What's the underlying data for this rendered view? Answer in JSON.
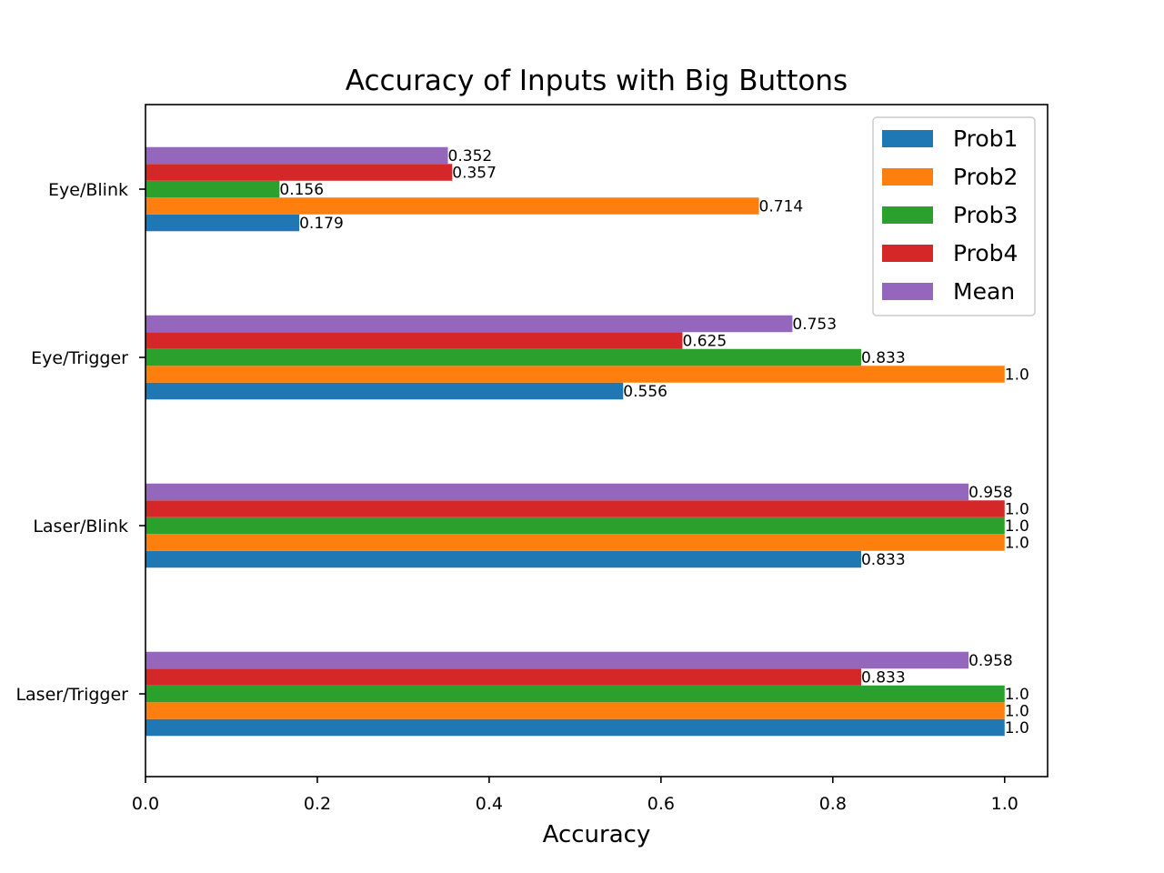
{
  "chart_data": {
    "type": "bar",
    "orientation": "horizontal",
    "title": "Accuracy of Inputs with Big Buttons",
    "xlabel": "Accuracy",
    "ylabel": "",
    "xlim": [
      0,
      1.05
    ],
    "xticks": [
      "0.0",
      "0.2",
      "0.4",
      "0.6",
      "0.8",
      "1.0"
    ],
    "categories": [
      "Eye/Blink",
      "Eye/Trigger",
      "Laser/Blink",
      "Laser/Trigger"
    ],
    "series": [
      {
        "name": "Prob1",
        "color": "#1f77b4",
        "values": [
          0.179,
          0.556,
          0.833,
          1.0
        ],
        "labels": [
          "0.179",
          "0.556",
          "0.833",
          "1.0"
        ]
      },
      {
        "name": "Prob2",
        "color": "#ff7f0e",
        "values": [
          0.714,
          1.0,
          1.0,
          1.0
        ],
        "labels": [
          "0.714",
          "1.0",
          "1.0",
          "1.0"
        ]
      },
      {
        "name": "Prob3",
        "color": "#2ca02c",
        "values": [
          0.156,
          0.833,
          1.0,
          1.0
        ],
        "labels": [
          "0.156",
          "0.833",
          "1.0",
          "1.0"
        ]
      },
      {
        "name": "Prob4",
        "color": "#d62728",
        "values": [
          0.357,
          0.625,
          1.0,
          0.833
        ],
        "labels": [
          "0.357",
          "0.625",
          "1.0",
          "0.833"
        ]
      },
      {
        "name": "Mean",
        "color": "#9467bd",
        "values": [
          0.352,
          0.753,
          0.958,
          0.958
        ],
        "labels": [
          "0.352",
          "0.753",
          "0.958",
          "0.958"
        ]
      }
    ],
    "grid": false,
    "legend": "top-right"
  }
}
